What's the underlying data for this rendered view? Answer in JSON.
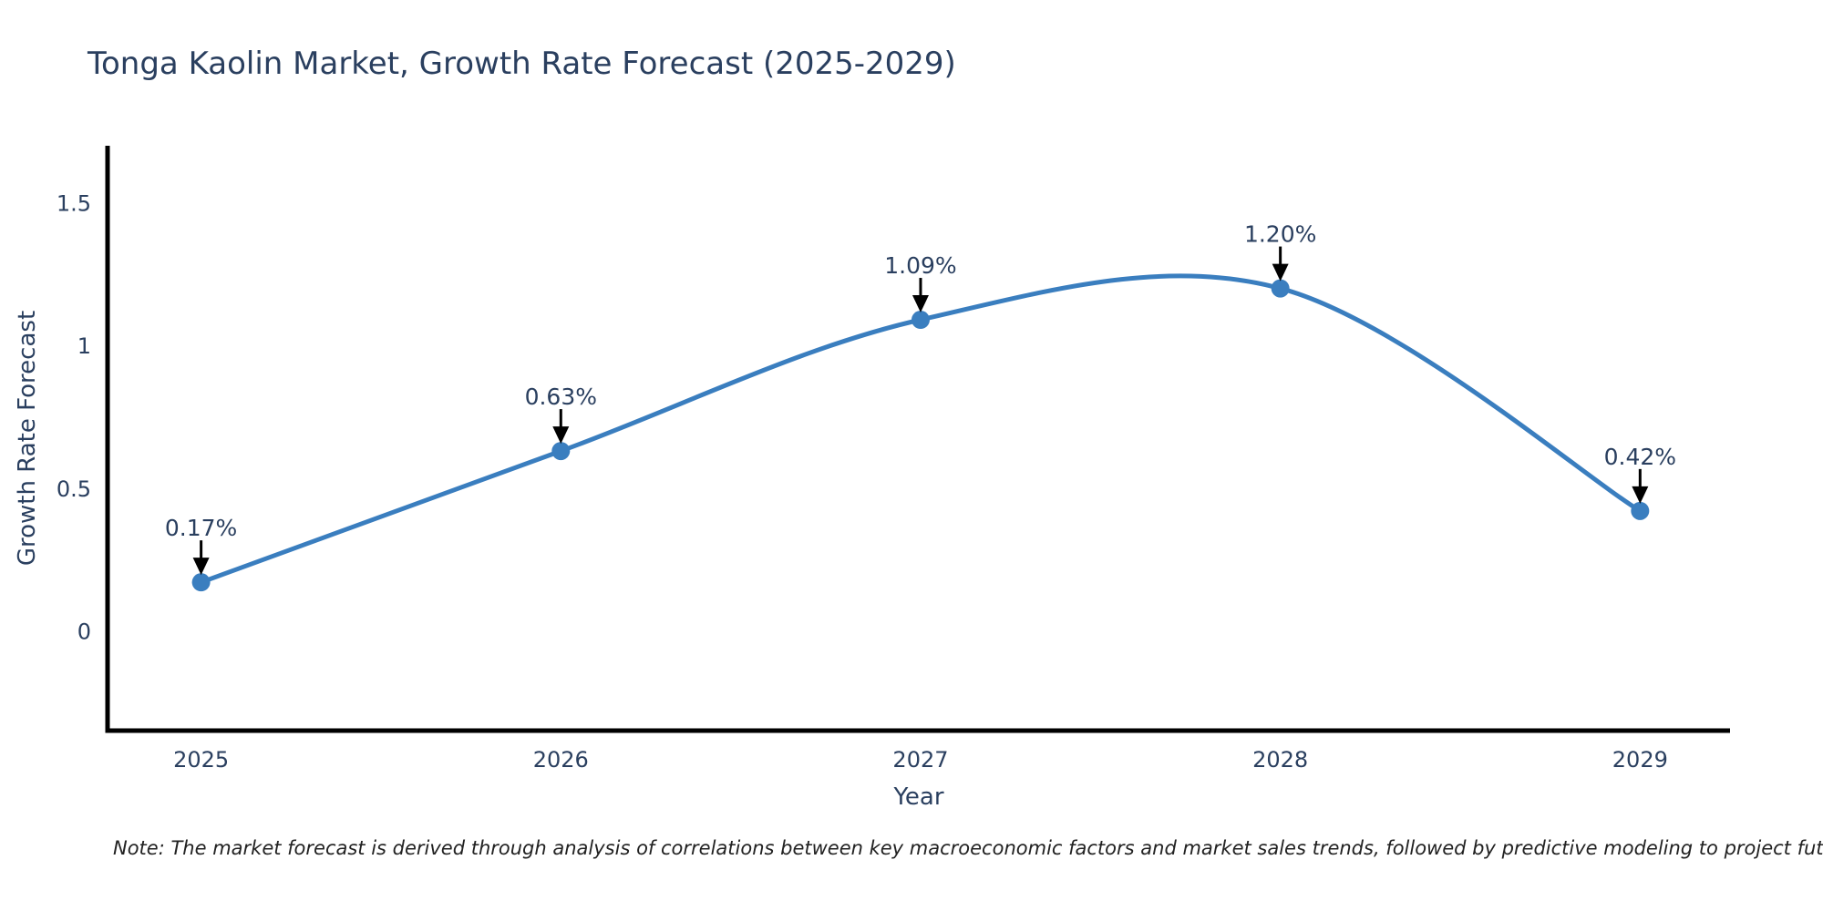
{
  "header": {
    "title": "Tonga Kaolin Market, Growth Rate Forecast (2025-2029)"
  },
  "footnote": {
    "text": "Note: The market forecast is derived through analysis of correlations between key macroeconomic factors and market sales trends, followed by predictive modeling to project future sales"
  },
  "colors": {
    "line": "#3a7ebf",
    "marker": "#3a7ebf",
    "axis": "#000000",
    "arrow": "#000000",
    "title_text": "#2a3f5f",
    "tick_text": "#2a3f5f",
    "annotation_text": "#2a3f5f",
    "note_text": "#222222",
    "background": "#ffffff"
  },
  "chart_data": {
    "type": "line",
    "title": "Tonga Kaolin Market, Growth Rate Forecast (2025-2029)",
    "xlabel": "Year",
    "ylabel": "Growth Rate Forecast",
    "x": [
      2025,
      2026,
      2027,
      2028,
      2029
    ],
    "values": [
      0.17,
      0.63,
      1.09,
      1.2,
      0.42
    ],
    "point_labels": [
      "0.17%",
      "0.63%",
      "1.09%",
      "1.20%",
      "0.42%"
    ],
    "series_name": "Growth Rate Forecast",
    "xticks": [
      2025,
      2026,
      2027,
      2028,
      2029
    ],
    "xtick_labels": [
      "2025",
      "2026",
      "2027",
      "2028",
      "2029"
    ],
    "yticks": [
      0,
      0.5,
      1,
      1.5
    ],
    "ytick_labels": [
      "0",
      "0.5",
      "1",
      "1.5"
    ],
    "xlim": [
      2024.74,
      2029.25
    ],
    "ylim": [
      -0.35,
      1.7
    ],
    "grid": false,
    "legend": false,
    "line_shape": "spline",
    "markers": true,
    "annotation_style": "value label above each point with downward black arrow"
  }
}
